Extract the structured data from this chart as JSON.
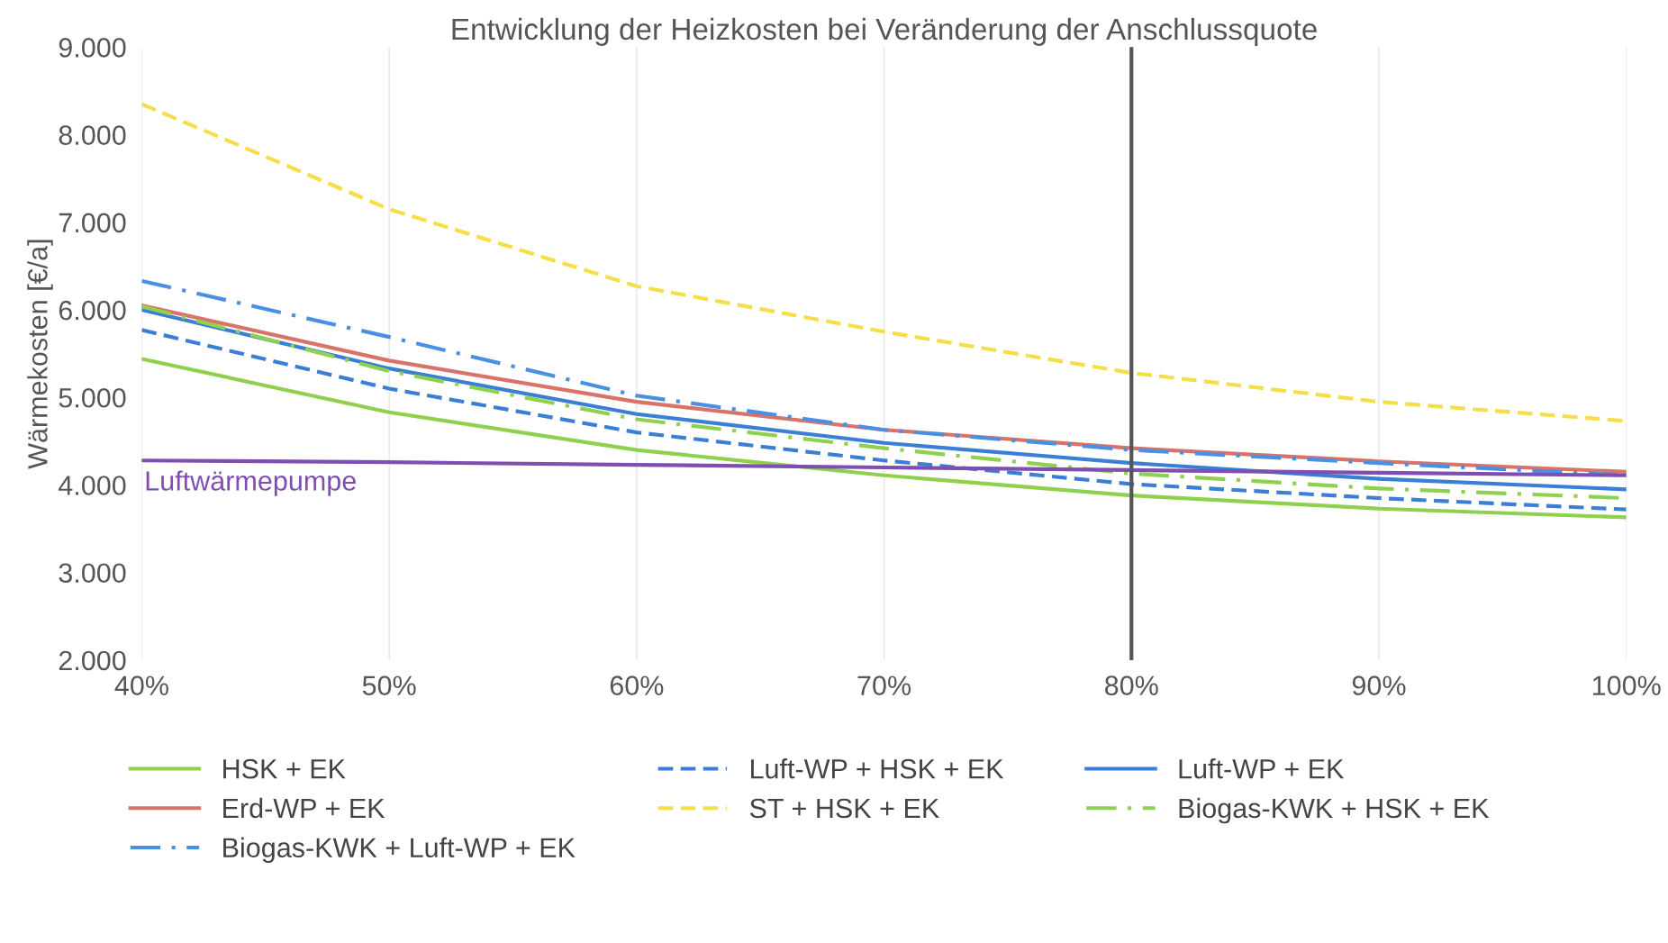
{
  "chart_data": {
    "type": "line",
    "title": "Entwicklung der Heizkosten bei Veränderung der Anschlussquote",
    "ylabel": "Wärmekosten [€/a]",
    "x": [
      40,
      50,
      60,
      70,
      80,
      90,
      100
    ],
    "xlim": [
      40,
      100
    ],
    "xticks": [
      {
        "value": 40,
        "label": "40%"
      },
      {
        "value": 50,
        "label": "50%"
      },
      {
        "value": 60,
        "label": "60%"
      },
      {
        "value": 70,
        "label": "70%"
      },
      {
        "value": 80,
        "label": "80%"
      },
      {
        "value": 90,
        "label": "90%"
      },
      {
        "value": 100,
        "label": "100%"
      }
    ],
    "ylim": [
      2000,
      9000
    ],
    "yticks": [
      {
        "value": 2000,
        "label": "2.000"
      },
      {
        "value": 3000,
        "label": "3.000"
      },
      {
        "value": 4000,
        "label": "4.000"
      },
      {
        "value": 5000,
        "label": "5.000"
      },
      {
        "value": 6000,
        "label": "6.000"
      },
      {
        "value": 7000,
        "label": "7.000"
      },
      {
        "value": 8000,
        "label": "8.000"
      },
      {
        "value": 9000,
        "label": "9.000"
      }
    ],
    "grid": "x",
    "legend": "bottom",
    "marker": "none",
    "series": [
      {
        "name": "HSK + EK",
        "color": "#8fd14f",
        "line_style": "solid",
        "values": [
          5440,
          4830,
          4400,
          4110,
          3880,
          3730,
          3630
        ]
      },
      {
        "name": "Luft-WP + HSK + EK",
        "color": "#3a7fd5",
        "line_style": "dashed",
        "values": [
          5770,
          5100,
          4600,
          4280,
          4010,
          3850,
          3720
        ]
      },
      {
        "name": "Luft-WP + EK",
        "color": "#3a7fd5",
        "line_style": "solid",
        "values": [
          6000,
          5330,
          4810,
          4480,
          4250,
          4070,
          3950
        ]
      },
      {
        "name": "Erd-WP + EK",
        "color": "#d9736a",
        "line_style": "solid",
        "values": [
          6050,
          5420,
          4950,
          4630,
          4420,
          4270,
          4150
        ]
      },
      {
        "name": "ST + HSK + EK",
        "color": "#f5de4a",
        "line_style": "dashed",
        "values": [
          8350,
          7150,
          6270,
          5750,
          5280,
          4950,
          4730
        ]
      },
      {
        "name": "Biogas-KWK + HSK + EK",
        "color": "#8fd14f",
        "line_style": "dashdot",
        "values": [
          6040,
          5300,
          4750,
          4420,
          4130,
          3960,
          3850
        ]
      },
      {
        "name": "Biogas-KWK + Luft-WP + EK",
        "color": "#4a90e2",
        "line_style": "dashdot",
        "values": [
          6330,
          5690,
          5020,
          4630,
          4400,
          4250,
          4110
        ]
      },
      {
        "color": "#7e4fb0",
        "line_style": "solid",
        "values": [
          4280,
          4260,
          4230,
          4200,
          4170,
          4140,
          4110
        ]
      }
    ],
    "annotations": [
      {
        "text": "Luftwärmepumpe",
        "x": 40,
        "y": 4280
      }
    ],
    "ref_lines": [
      {
        "axis": "x",
        "value": 80,
        "color": "#555555",
        "line_style": "solid"
      }
    ]
  }
}
